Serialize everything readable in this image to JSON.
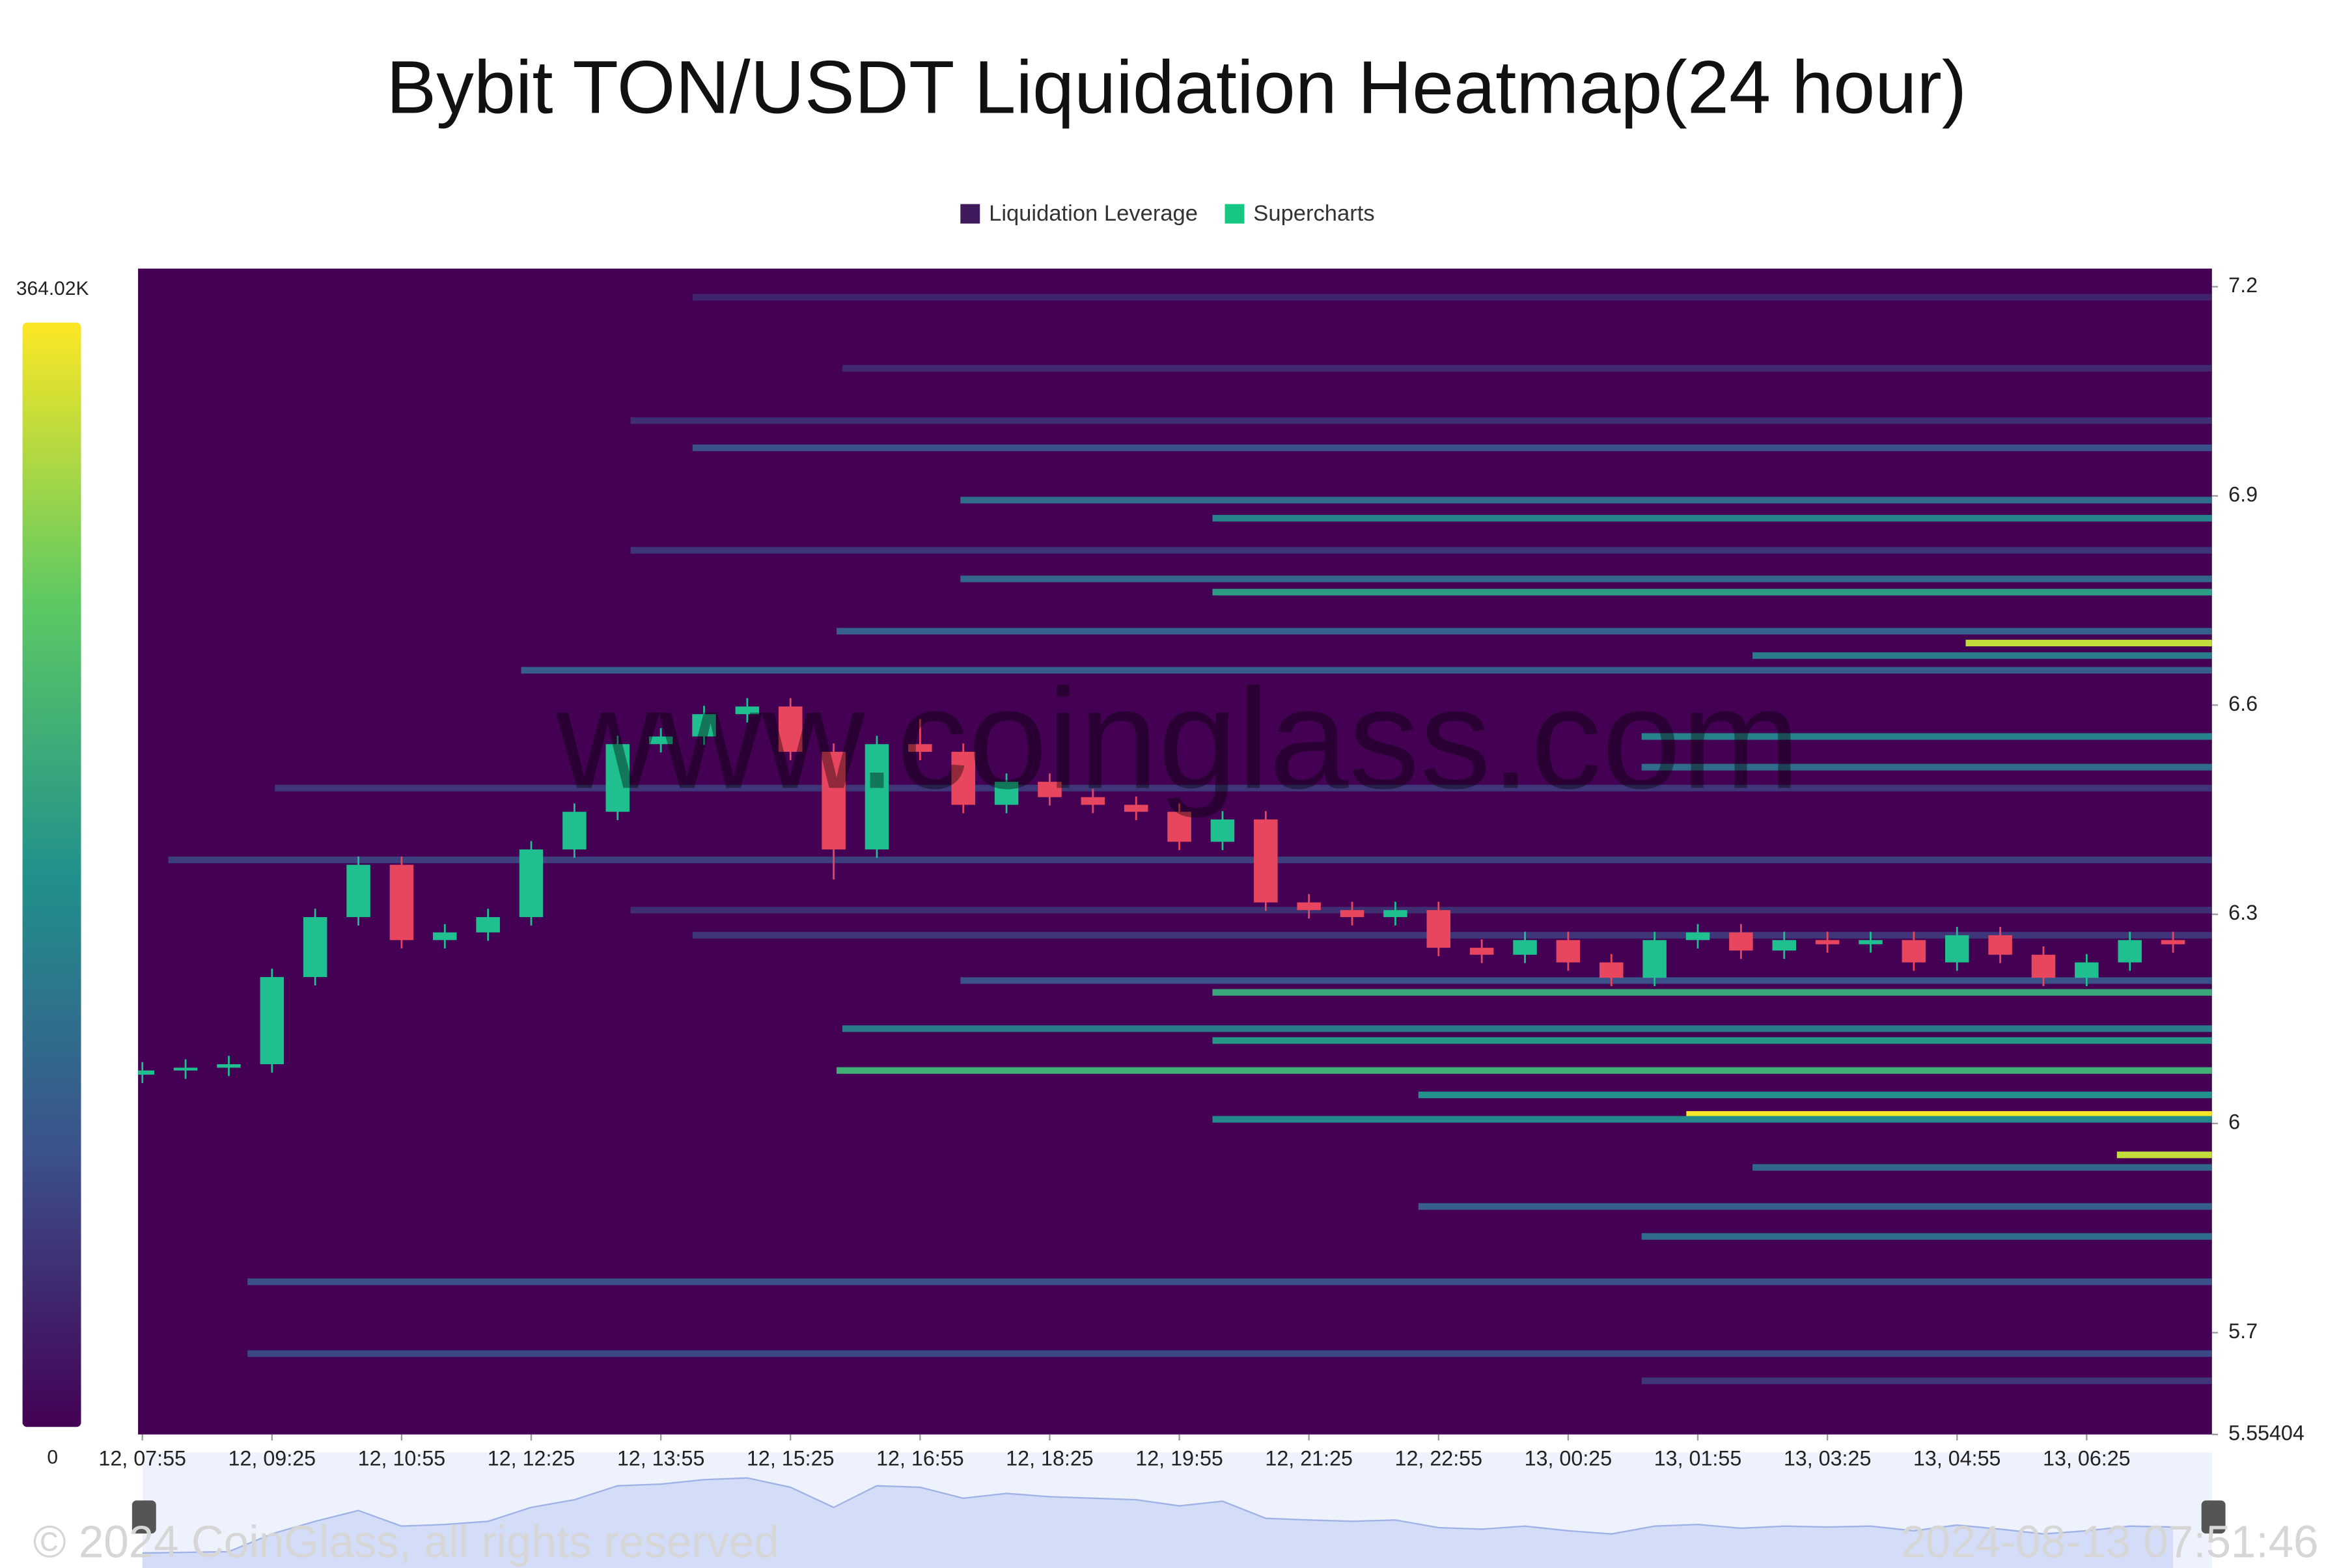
{
  "chart_data": {
    "type": "liquidation-heatmap",
    "title": "Bybit TON/USDT Liquidation Heatmap(24 hour)",
    "watermark": "www.coinglass.com",
    "copyright": "© 2024 CoinGlass, all rights reserved",
    "timestamp": "2024-08-13 07:51:46",
    "series": [
      {
        "name": "Liquidation Leverage",
        "color": "#3f1a5c"
      },
      {
        "name": "Supercharts",
        "color": "#16c784"
      }
    ],
    "up_color": "#1fbf8f",
    "down_color": "#e8455f",
    "colorscale": "viridis",
    "color_range": [
      0,
      364020
    ],
    "color_ticks": [
      {
        "value": 364020,
        "label": "364.02K"
      },
      0
    ],
    "xlim": [
      -3,
      1437
    ],
    "xticks": [
      {
        "value": 0,
        "label": "12, 07:55"
      },
      {
        "value": 90,
        "label": "12, 09:25"
      },
      {
        "value": 180,
        "label": "12, 10:55"
      },
      {
        "value": 270,
        "label": "12, 12:25"
      },
      {
        "value": 360,
        "label": "12, 13:55"
      },
      {
        "value": 450,
        "label": "12, 15:25"
      },
      {
        "value": 540,
        "label": "12, 16:55"
      },
      {
        "value": 630,
        "label": "12, 18:25"
      },
      {
        "value": 720,
        "label": "12, 19:55"
      },
      {
        "value": 810,
        "label": "12, 21:25"
      },
      {
        "value": 900,
        "label": "12, 22:55"
      },
      {
        "value": 990,
        "label": "13, 00:25"
      },
      {
        "value": 1080,
        "label": "13, 01:55"
      },
      {
        "value": 1170,
        "label": "13, 03:25"
      },
      {
        "value": 1260,
        "label": "13, 04:55"
      },
      {
        "value": 1350,
        "label": "13, 06:25"
      }
    ],
    "ylim": [
      5.55404,
      7.226
    ],
    "yticks": [
      7.2,
      6.9,
      6.6,
      6.3,
      6,
      5.7,
      5.55404
    ],
    "x": [
      0,
      30,
      60,
      90,
      120,
      150,
      180,
      210,
      240,
      270,
      300,
      330,
      360,
      390,
      420,
      450,
      480,
      510,
      540,
      570,
      600,
      630,
      660,
      690,
      720,
      750,
      780,
      810,
      840,
      870,
      900,
      930,
      960,
      990,
      1020,
      1050,
      1080,
      1110,
      1140,
      1170,
      1200,
      1230,
      1260,
      1290,
      1320,
      1350,
      1380,
      1410
    ],
    "open": [
      6.07,
      6.076,
      6.08,
      6.085,
      6.21,
      6.296,
      6.371,
      6.263,
      6.274,
      6.296,
      6.393,
      6.447,
      6.544,
      6.555,
      6.587,
      6.598,
      6.533,
      6.393,
      6.544,
      6.533,
      6.457,
      6.49,
      6.468,
      6.457,
      6.447,
      6.404,
      6.436,
      6.317,
      6.306,
      6.296,
      6.306,
      6.252,
      6.242,
      6.263,
      6.231,
      6.209,
      6.263,
      6.274,
      6.248,
      6.263,
      6.257,
      6.263,
      6.231,
      6.27,
      6.242,
      6.209,
      6.231,
      6.263
    ],
    "high": [
      6.088,
      6.092,
      6.097,
      6.222,
      6.308,
      6.383,
      6.383,
      6.286,
      6.308,
      6.405,
      6.459,
      6.556,
      6.567,
      6.599,
      6.61,
      6.61,
      6.545,
      6.556,
      6.58,
      6.545,
      6.502,
      6.502,
      6.48,
      6.469,
      6.459,
      6.448,
      6.448,
      6.329,
      6.318,
      6.318,
      6.318,
      6.264,
      6.275,
      6.275,
      6.243,
      6.275,
      6.286,
      6.286,
      6.275,
      6.275,
      6.275,
      6.275,
      6.282,
      6.282,
      6.254,
      6.243,
      6.275,
      6.275
    ],
    "low": [
      6.058,
      6.064,
      6.068,
      6.073,
      6.198,
      6.284,
      6.251,
      6.251,
      6.262,
      6.284,
      6.381,
      6.435,
      6.532,
      6.543,
      6.575,
      6.521,
      6.35,
      6.381,
      6.521,
      6.445,
      6.445,
      6.456,
      6.445,
      6.435,
      6.392,
      6.392,
      6.305,
      6.294,
      6.284,
      6.284,
      6.24,
      6.23,
      6.23,
      6.219,
      6.197,
      6.197,
      6.251,
      6.236,
      6.236,
      6.245,
      6.245,
      6.219,
      6.219,
      6.23,
      6.197,
      6.197,
      6.219,
      6.245
    ],
    "close": [
      6.076,
      6.08,
      6.085,
      6.21,
      6.296,
      6.371,
      6.263,
      6.274,
      6.296,
      6.393,
      6.447,
      6.544,
      6.555,
      6.587,
      6.598,
      6.533,
      6.393,
      6.544,
      6.533,
      6.457,
      6.49,
      6.468,
      6.457,
      6.447,
      6.404,
      6.436,
      6.317,
      6.306,
      6.296,
      6.306,
      6.252,
      6.242,
      6.263,
      6.231,
      6.209,
      6.263,
      6.274,
      6.248,
      6.263,
      6.257,
      6.263,
      6.231,
      6.27,
      6.242,
      6.209,
      6.231,
      6.263,
      6.257
    ],
    "bands": [
      {
        "price": 7.185,
        "start": 382,
        "value": 40000
      },
      {
        "price": 7.083,
        "start": 486,
        "value": 45000
      },
      {
        "price": 7.008,
        "start": 339,
        "value": 50000
      },
      {
        "price": 6.969,
        "start": 382,
        "value": 90000
      },
      {
        "price": 6.894,
        "start": 568,
        "value": 130000
      },
      {
        "price": 6.868,
        "start": 743,
        "value": 160000
      },
      {
        "price": 6.822,
        "start": 339,
        "value": 60000
      },
      {
        "price": 6.781,
        "start": 568,
        "value": 120000
      },
      {
        "price": 6.762,
        "start": 743,
        "value": 200000
      },
      {
        "price": 6.706,
        "start": 482,
        "value": 110000
      },
      {
        "price": 6.689,
        "start": 1266,
        "value": 330000
      },
      {
        "price": 6.671,
        "start": 1118,
        "value": 150000
      },
      {
        "price": 6.65,
        "start": 263,
        "value": 110000
      },
      {
        "price": 6.555,
        "start": 1041,
        "value": 160000
      },
      {
        "price": 6.511,
        "start": 1041,
        "value": 130000
      },
      {
        "price": 6.481,
        "start": 92,
        "value": 60000
      },
      {
        "price": 6.378,
        "start": 18,
        "value": 70000
      },
      {
        "price": 6.306,
        "start": 339,
        "value": 50000
      },
      {
        "price": 6.27,
        "start": 382,
        "value": 60000
      },
      {
        "price": 6.205,
        "start": 568,
        "value": 90000
      },
      {
        "price": 6.188,
        "start": 743,
        "value": 220000
      },
      {
        "price": 6.136,
        "start": 486,
        "value": 150000
      },
      {
        "price": 6.119,
        "start": 743,
        "value": 190000
      },
      {
        "price": 6.076,
        "start": 482,
        "value": 230000
      },
      {
        "price": 6.041,
        "start": 886,
        "value": 180000
      },
      {
        "price": 6.013,
        "start": 1072,
        "value": 360000
      },
      {
        "price": 6.006,
        "start": 743,
        "value": 170000
      },
      {
        "price": 5.955,
        "start": 1371,
        "value": 330000
      },
      {
        "price": 5.937,
        "start": 1118,
        "value": 120000
      },
      {
        "price": 5.881,
        "start": 886,
        "value": 110000
      },
      {
        "price": 5.838,
        "start": 1041,
        "value": 130000
      },
      {
        "price": 5.773,
        "start": 73,
        "value": 90000
      },
      {
        "price": 5.67,
        "start": 73,
        "value": 80000
      },
      {
        "price": 5.631,
        "start": 1041,
        "value": 60000
      }
    ]
  }
}
